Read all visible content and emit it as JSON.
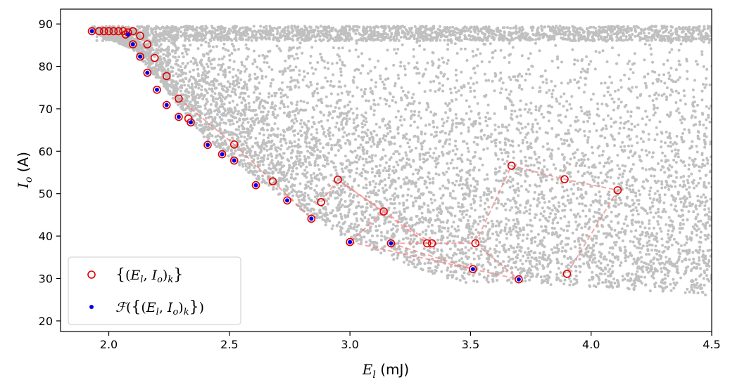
{
  "chart_data": {
    "type": "scatter",
    "title": "",
    "xlabel": "E_l (mJ)",
    "xlabel_parts": {
      "var": "E",
      "sub": "l",
      "unit": " (mJ)"
    },
    "ylabel": "I_o (A)",
    "ylabel_parts": {
      "var": "I",
      "sub": "o",
      "unit": " (A)"
    },
    "xlim": [
      1.8,
      4.5
    ],
    "ylim": [
      17.5,
      93.5
    ],
    "xticks": [
      "2.0",
      "2.5",
      "3.0",
      "3.5",
      "4.0",
      "4.5"
    ],
    "yticks": [
      "20",
      "30",
      "40",
      "50",
      "60",
      "70",
      "80",
      "90"
    ],
    "legend_position": "lower-left",
    "background_cloud": {
      "color": "#c0c0c0",
      "description_hidden": true
    },
    "series": [
      {
        "name": "{(E_l, I_o)_k}",
        "legend_label": "{(El, Io)k}",
        "marker": "hollow-circle",
        "color": "#e00000",
        "points": [
          [
            1.93,
            88.3
          ],
          [
            1.96,
            88.3
          ],
          [
            1.98,
            88.3
          ],
          [
            2.0,
            88.3
          ],
          [
            2.02,
            88.3
          ],
          [
            2.04,
            88.3
          ],
          [
            2.06,
            88.3
          ],
          [
            2.08,
            88.0
          ],
          [
            2.1,
            88.3
          ],
          [
            2.07,
            87.5
          ],
          [
            2.13,
            87.2
          ],
          [
            2.16,
            85.2
          ],
          [
            2.1,
            85.2
          ],
          [
            2.13,
            82.3
          ],
          [
            2.19,
            82.0
          ],
          [
            2.16,
            78.5
          ],
          [
            2.24,
            77.7
          ],
          [
            2.2,
            74.5
          ],
          [
            2.29,
            72.4
          ],
          [
            2.24,
            70.9
          ],
          [
            2.29,
            68.1
          ],
          [
            2.33,
            67.7
          ],
          [
            2.34,
            66.8
          ],
          [
            2.41,
            61.5
          ],
          [
            2.52,
            61.6
          ],
          [
            2.47,
            59.3
          ],
          [
            2.52,
            57.8
          ],
          [
            2.61,
            52.0
          ],
          [
            2.68,
            52.9
          ],
          [
            2.74,
            48.4
          ],
          [
            2.84,
            44.1
          ],
          [
            2.88,
            48.0
          ],
          [
            2.95,
            53.3
          ],
          [
            3.14,
            45.8
          ],
          [
            3.0,
            38.6
          ],
          [
            3.17,
            38.3
          ],
          [
            3.32,
            38.3
          ],
          [
            3.34,
            38.3
          ],
          [
            3.52,
            38.3
          ],
          [
            3.51,
            32.2
          ],
          [
            3.7,
            29.8
          ],
          [
            3.67,
            56.6
          ],
          [
            3.89,
            53.4
          ],
          [
            4.11,
            50.8
          ],
          [
            3.9,
            31.1
          ]
        ]
      },
      {
        "name": "F({(E_l, I_o)_k})",
        "legend_label": "F({(El, Io)k})",
        "marker": "dot",
        "color": "#0000ee",
        "points": [
          [
            1.93,
            88.3
          ],
          [
            2.08,
            87.5
          ],
          [
            2.1,
            85.2
          ],
          [
            2.13,
            82.3
          ],
          [
            2.16,
            78.5
          ],
          [
            2.2,
            74.5
          ],
          [
            2.24,
            70.9
          ],
          [
            2.29,
            68.1
          ],
          [
            2.34,
            66.8
          ],
          [
            2.41,
            61.5
          ],
          [
            2.47,
            59.3
          ],
          [
            2.52,
            57.8
          ],
          [
            2.61,
            52.0
          ],
          [
            2.74,
            48.4
          ],
          [
            2.84,
            44.1
          ],
          [
            3.0,
            38.6
          ],
          [
            3.17,
            38.3
          ],
          [
            3.51,
            32.2
          ],
          [
            3.7,
            29.8
          ]
        ]
      }
    ],
    "dashed_paths": [
      [
        [
          2.52,
          61.6
        ],
        [
          2.68,
          52.9
        ],
        [
          2.84,
          44.1
        ]
      ],
      [
        [
          2.29,
          72.4
        ],
        [
          2.52,
          61.6
        ]
      ],
      [
        [
          2.88,
          48.0
        ],
        [
          2.95,
          53.3
        ],
        [
          3.14,
          45.8
        ],
        [
          3.0,
          38.6
        ]
      ],
      [
        [
          2.95,
          53.3
        ],
        [
          3.32,
          38.3
        ],
        [
          3.17,
          38.3
        ]
      ],
      [
        [
          3.14,
          45.8
        ],
        [
          3.34,
          38.3
        ],
        [
          3.52,
          38.3
        ],
        [
          3.7,
          29.8
        ]
      ],
      [
        [
          3.17,
          38.3
        ],
        [
          3.51,
          32.2
        ],
        [
          3.7,
          29.8
        ]
      ],
      [
        [
          3.52,
          38.3
        ],
        [
          3.67,
          56.6
        ],
        [
          3.89,
          53.4
        ],
        [
          4.11,
          50.8
        ],
        [
          3.9,
          31.1
        ]
      ],
      [
        [
          3.0,
          38.6
        ],
        [
          3.51,
          32.2
        ]
      ]
    ]
  }
}
